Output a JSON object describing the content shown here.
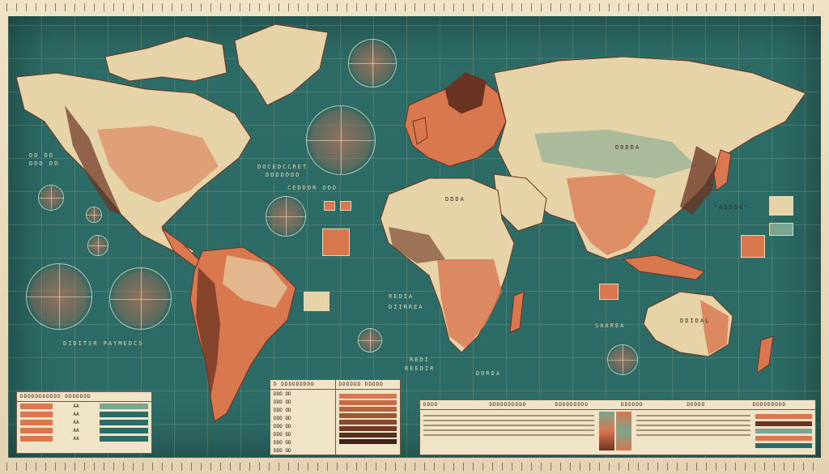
{
  "labels": {
    "north_america_left": "DD DD",
    "north_america_left2": "DDD DD",
    "atlantic_north": "DOCEDCCRET",
    "atlantic_north2": "DDDDDDD",
    "atlantic_mid": "CEDDDR ODD",
    "south_pacific": "DIDITSR PAYMEDCS",
    "south_atlantic": "REDIA",
    "south_atlantic2": "DIIRREA",
    "indian_south": "REDI",
    "indian_south2": "REEDIR",
    "indian_east": "DDRDA",
    "australia_area": "SAAREA",
    "asia_right": "\"ADDDE\"",
    "russia": "DDDDA",
    "africa_label": "DDDA",
    "australia_inner": "DDIDAL"
  },
  "legend_left": {
    "title": "DDDDDDDDDDD DDDDDDD",
    "rows": [
      {
        "code": "AA",
        "color": "#7aa58e"
      },
      {
        "code": "AA",
        "color": "#2d6b66"
      },
      {
        "code": "AA",
        "color": "#2d6b66"
      },
      {
        "code": "AA",
        "color": "#2d6b66"
      },
      {
        "code": "AA",
        "color": "#2d6b66"
      }
    ]
  },
  "legend_mid": {
    "title_left": "D DDDDDDDDD",
    "title_right": "DDDDDD DDDDD",
    "rows": [
      "DDD DD",
      "DDD DD",
      "DDD DD",
      "DDD DD",
      "DDD DD",
      "DDD DD",
      "DDD DD",
      "DDD DD"
    ]
  },
  "legend_right": {
    "headers": [
      "DDDD",
      "DDDDDDDDDD",
      "DDDDDDDDD",
      "DDDDDD",
      "DDDDD",
      "DDDDDDDDD"
    ],
    "rows": 5
  },
  "colors": {
    "sea": "#2d6b66",
    "land_light": "#e6d3a8",
    "land_orange": "#d9774f",
    "land_brown": "#6b3322",
    "land_green": "#7aa58e"
  }
}
